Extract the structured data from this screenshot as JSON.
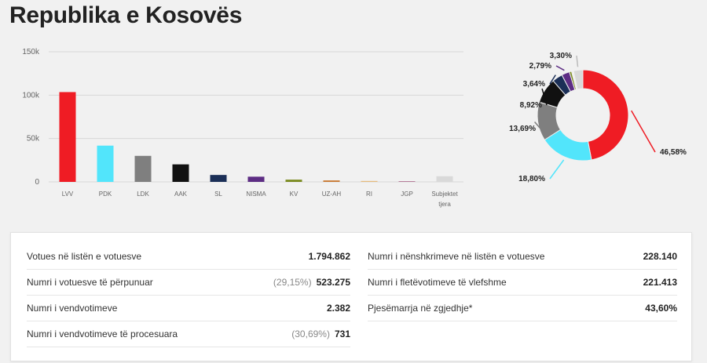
{
  "header": {
    "title": "Republika e Kosovës"
  },
  "chart_data": [
    {
      "type": "bar",
      "categories": [
        "LVV",
        "PDK",
        "LDK",
        "AAK",
        "SL",
        "NISMA",
        "KV",
        "UZ-AH",
        "RI",
        "JGP",
        "Subjektet tjera"
      ],
      "values": [
        103500,
        41800,
        30000,
        20200,
        8000,
        6000,
        2600,
        1700,
        1100,
        900,
        6500
      ],
      "colors": [
        "#ef1c24",
        "#52e5fb",
        "#7f7f7f",
        "#111111",
        "#1b2f57",
        "#5d2d84",
        "#7b8b21",
        "#c97a34",
        "#e6bb7e",
        "#b8809d",
        "#d9d9d9"
      ],
      "y_ticks": [
        "0",
        "50k",
        "100k",
        "150k"
      ],
      "y_tick_values": [
        0,
        50000,
        100000,
        150000
      ],
      "ylim": [
        0,
        150000
      ],
      "grid": "horizontal"
    },
    {
      "type": "pie",
      "variant": "donut",
      "slices": [
        {
          "value": 46.58,
          "label": "46,58%",
          "color": "#ef1c24"
        },
        {
          "value": 18.8,
          "label": "18,80%",
          "color": "#52e5fb"
        },
        {
          "value": 13.69,
          "label": "13,69%",
          "color": "#7f7f7f"
        },
        {
          "value": 8.92,
          "label": "8,92%",
          "color": "#111111"
        },
        {
          "value": 3.64,
          "label": "3,64%",
          "color": "#1b2f57"
        },
        {
          "value": 2.79,
          "label": "2,79%",
          "color": "#5d2d84"
        },
        {
          "value": 0.8,
          "label": "",
          "color": "#7b8b21"
        },
        {
          "value": 0.3,
          "label": "",
          "color": "#c97a34"
        },
        {
          "value": 0.2,
          "label": "",
          "color": "#e6bb7e"
        },
        {
          "value": 0.18,
          "label": "",
          "color": "#b8809d"
        },
        {
          "value": 3.3,
          "label": "3,30%",
          "color": "#d9d9d9"
        }
      ]
    }
  ],
  "stats": {
    "left": [
      {
        "label": "Votues në listën e votuesve",
        "pct": "",
        "value": "1.794.862"
      },
      {
        "label": "Numri i votuesve të përpunuar",
        "pct": "(29,15%)",
        "value": "523.275"
      },
      {
        "label": "Numri i vendvotimeve",
        "pct": "",
        "value": "2.382"
      },
      {
        "label": "Numri i vendvotimeve të procesuara",
        "pct": "(30,69%)",
        "value": "731"
      }
    ],
    "right": [
      {
        "label": "Numri i nënshkrimeve në listën e votuesve",
        "value": "228.140"
      },
      {
        "label": "Numri i fletëvotimeve të vlefshme",
        "value": "221.413"
      },
      {
        "label": "Pjesëmarrja në zgjedhje*",
        "value": "43,60%"
      }
    ]
  }
}
